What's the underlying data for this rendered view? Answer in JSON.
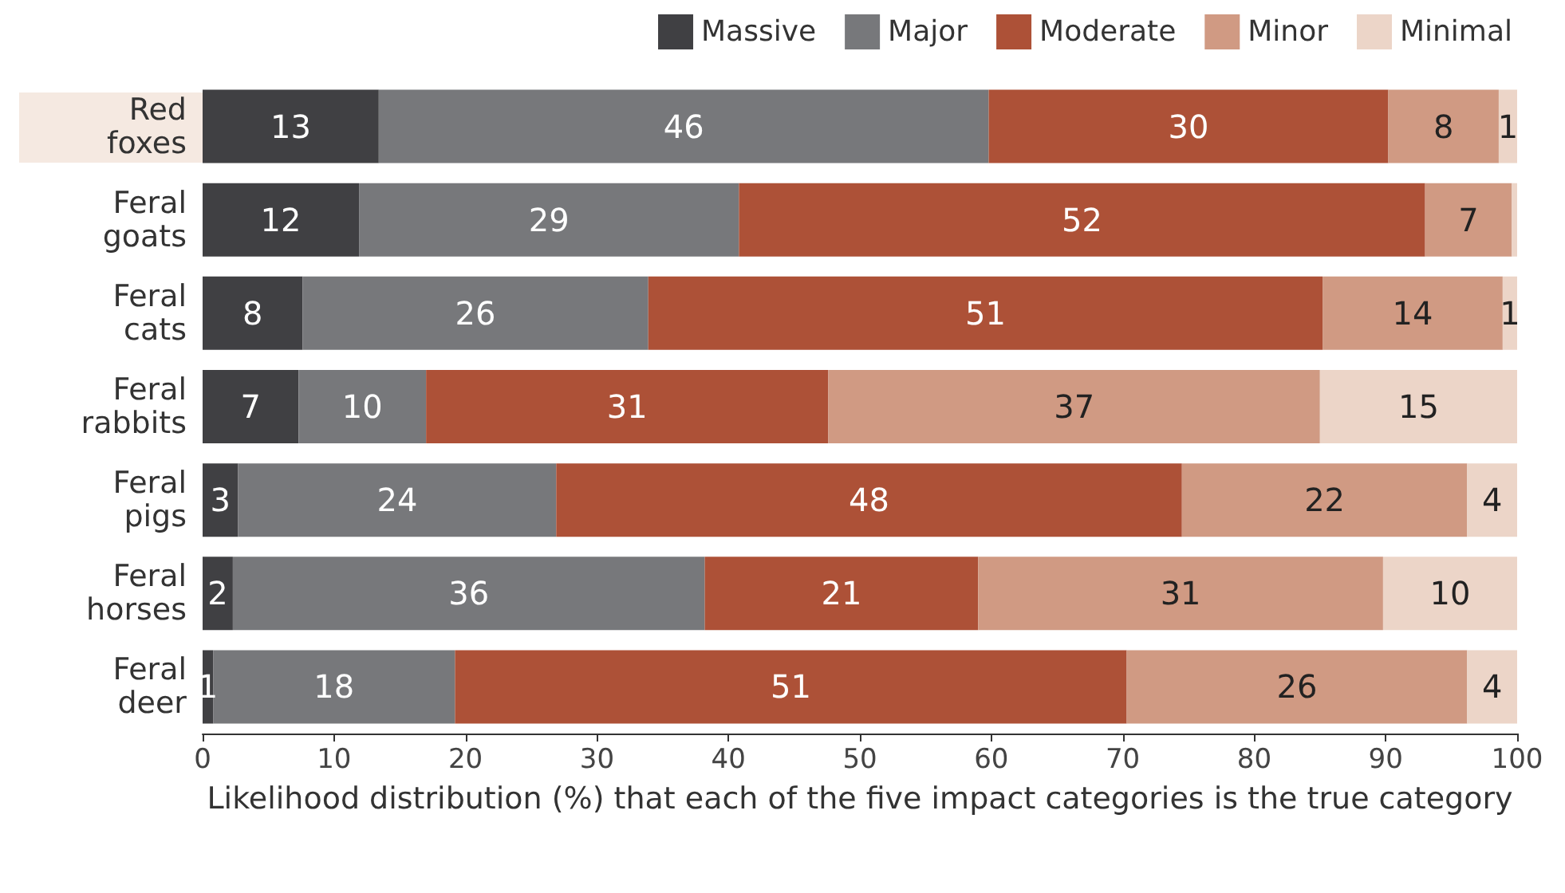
{
  "chart_data": {
    "type": "bar",
    "orientation": "horizontal",
    "stacked": true,
    "legend": "top right",
    "grid": false,
    "categories": [
      "Red foxes",
      "Feral goats",
      "Feral cats",
      "Feral rabbits",
      "Feral pigs",
      "Feral horses",
      "Feral deer"
    ],
    "xlabel": "Likelihood distribution (%) that each of the five impact categories is the true category",
    "xlim": [
      0,
      100
    ],
    "xticks": [
      0,
      10,
      20,
      30,
      40,
      50,
      60,
      70,
      80,
      90,
      100
    ],
    "series": [
      {
        "name": "Massive",
        "color": "#404043",
        "values": [
          13.4,
          11.9,
          7.6,
          7.3,
          2.7,
          2.3,
          0.8
        ],
        "value_labels": [
          "13",
          "12",
          "8",
          "7",
          "3",
          "2",
          "1"
        ]
      },
      {
        "name": "Major",
        "color": "#77787b",
        "values": [
          46.4,
          28.9,
          26.3,
          9.7,
          24.2,
          35.9,
          18.4
        ],
        "value_labels": [
          "46",
          "29",
          "26",
          "10",
          "24",
          "36",
          "18"
        ]
      },
      {
        "name": "Moderate",
        "color": "#ad5137",
        "values": [
          30.4,
          52.2,
          51.3,
          30.6,
          47.6,
          20.8,
          51.1
        ],
        "value_labels": [
          "30",
          "52",
          "51",
          "31",
          "48",
          "21",
          "51"
        ]
      },
      {
        "name": "Minor",
        "color": "#d09a83",
        "values": [
          8.4,
          6.6,
          13.7,
          37.4,
          21.7,
          30.8,
          25.9
        ],
        "value_labels": [
          "8",
          "7",
          "14",
          "37",
          "22",
          "31",
          "26"
        ]
      },
      {
        "name": "Minimal",
        "color": "#ecd5c8",
        "values": [
          1.4,
          0.4,
          1.1,
          15.0,
          3.8,
          10.2,
          3.8
        ],
        "value_labels": [
          "1",
          null,
          "1",
          "15",
          "4",
          "10",
          "4"
        ]
      }
    ]
  }
}
